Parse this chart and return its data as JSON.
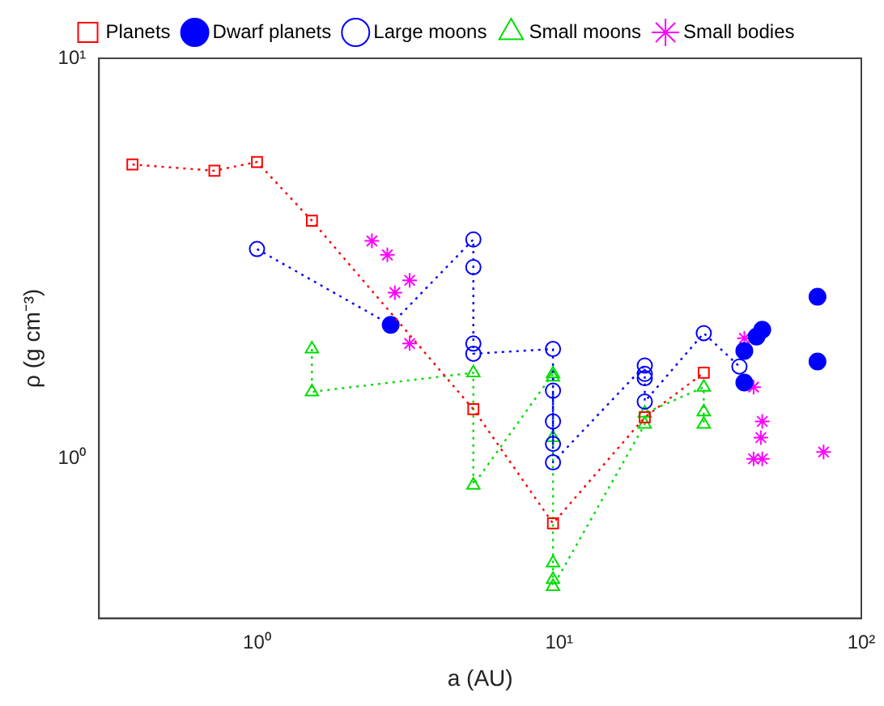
{
  "chart_data": {
    "type": "line",
    "xlabel": "a (AU)",
    "ylabel": "ρ (g cm⁻³)",
    "log": "xy",
    "xlim": [
      0.3,
      100
    ],
    "ylim": [
      0.4,
      10
    ],
    "xticks": [
      {
        "value": 1,
        "label": "10⁰"
      },
      {
        "value": 10,
        "label": "10¹"
      },
      {
        "value": 100,
        "label": "10²"
      }
    ],
    "yticks": [
      {
        "value": 1,
        "label": "10⁰"
      },
      {
        "value": 10,
        "label": "10¹"
      }
    ],
    "legend": "top",
    "grid": false,
    "line_style": "dotted",
    "series": [
      {
        "name": "Planets",
        "marker": "square",
        "color": "#ff0000",
        "x": [
          0.387,
          0.723,
          1,
          1.52,
          5.2,
          9.54,
          19.2,
          30.1
        ],
        "values": [
          5.43,
          5.24,
          5.51,
          3.93,
          1.33,
          0.69,
          1.27,
          1.64
        ]
      },
      {
        "name": "Dwarf planets",
        "type": "scatter",
        "marker": "circle",
        "color": "#0000ff",
        "x": [
          2.77,
          41,
          41,
          45,
          47,
          71.6,
          71.6
        ],
        "values": [
          2.16,
          1.55,
          1.86,
          2.02,
          2.1,
          2.54,
          1.75
        ]
      },
      {
        "name": "Large moons",
        "marker": "circle",
        "color": "#0000ff",
        "x": [
          1,
          2.77,
          5.2,
          5.2,
          5.2,
          5.2,
          9.54,
          9.54,
          9.54,
          9.54,
          9.54,
          19.2,
          19.2,
          19.2,
          19.2,
          30.1,
          39.5
        ],
        "values": [
          3.34,
          2.16,
          3.53,
          3.01,
          1.94,
          1.83,
          1.88,
          1.24,
          1.09,
          1.48,
          0.98,
          1.71,
          1.63,
          1.59,
          1.39,
          2.06,
          1.7
        ]
      },
      {
        "name": "Small moons",
        "marker": "triangle",
        "color": "#00dd00",
        "x": [
          1.52,
          1.52,
          5.2,
          5.2,
          9.54,
          9.54,
          9.54,
          9.54,
          9.54,
          9.54,
          19.2,
          19.2,
          30.1,
          30.1,
          30.1
        ],
        "values": [
          1.88,
          1.47,
          1.64,
          0.86,
          1.63,
          1.6,
          1.13,
          0.55,
          0.5,
          0.48,
          1.22,
          1.3,
          1.51,
          1.31,
          1.22
        ]
      },
      {
        "name": "Small bodies",
        "type": "scatter",
        "marker": "cross",
        "color": "#ff00ff",
        "x": [
          2.4,
          2.7,
          3.2,
          2.86,
          3.2,
          41,
          44,
          47,
          46.5,
          44,
          47,
          75
        ],
        "values": [
          3.5,
          3.23,
          2.79,
          2.6,
          1.94,
          2.0,
          1.51,
          1.24,
          1.13,
          1.0,
          1.0,
          1.04
        ]
      }
    ]
  }
}
